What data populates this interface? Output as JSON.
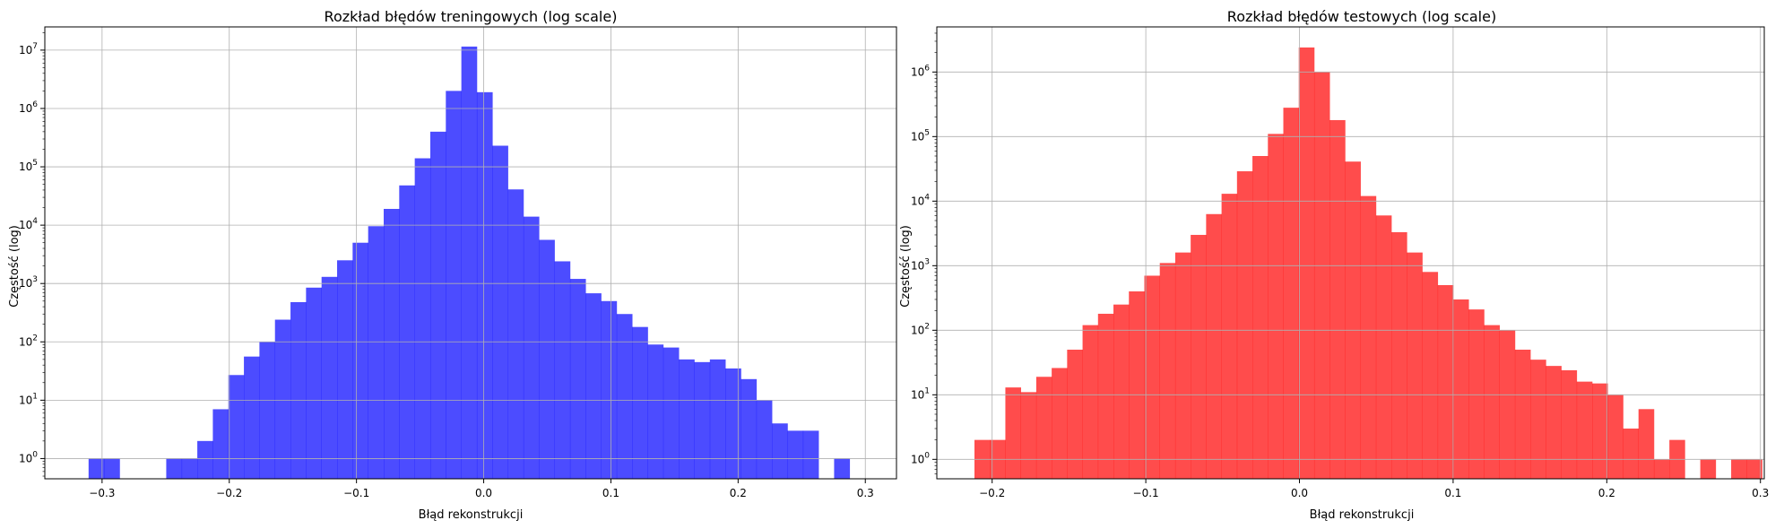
{
  "chart_data": [
    {
      "type": "bar",
      "title": "Rozkład błędów treningowych (log scale)",
      "xlabel": "Błąd rekonstrukcji",
      "ylabel": "Częstość (log)",
      "yscale": "log",
      "grid": true,
      "color": "#0000ff",
      "opacity": 0.7,
      "xlim": [
        -0.345,
        0.3245
      ],
      "ylim": [
        0.45,
        25000000
      ],
      "xticks": [
        -0.3,
        -0.2,
        -0.1,
        0.0,
        0.1,
        0.2,
        0.3
      ],
      "xtick_labels": [
        "−0.3",
        "−0.2",
        "−0.1",
        "0.0",
        "0.1",
        "0.2",
        "0.3"
      ],
      "yticks": [
        {
          "value": 1,
          "base": "10",
          "exp": "0"
        },
        {
          "value": 10,
          "base": "10",
          "exp": "1"
        },
        {
          "value": 100,
          "base": "10",
          "exp": "2"
        },
        {
          "value": 1000,
          "base": "10",
          "exp": "3"
        },
        {
          "value": 10000,
          "base": "10",
          "exp": "4"
        },
        {
          "value": 100000,
          "base": "10",
          "exp": "5"
        },
        {
          "value": 1000000,
          "base": "10",
          "exp": "6"
        },
        {
          "value": 10000000,
          "base": "10",
          "exp": "7"
        }
      ],
      "bin_start": -0.3106,
      "bin_width": 0.01221,
      "values": [
        1,
        1,
        0,
        0,
        0,
        1,
        1,
        2,
        7,
        27,
        56,
        100,
        240,
        480,
        850,
        1300,
        2500,
        5000,
        9600,
        19000,
        48000,
        140000,
        400000,
        2000000,
        11500000,
        1900000,
        230000,
        41000,
        14000,
        5600,
        2400,
        1200,
        680,
        500,
        300,
        180,
        90,
        80,
        50,
        45,
        50,
        35,
        23,
        10,
        4,
        3,
        3,
        0,
        1
      ]
    },
    {
      "type": "bar",
      "title": "Rozkład błędów testowych (log scale)",
      "xlabel": "Błąd rekonstrukcji",
      "ylabel": "Częstość (log)",
      "yscale": "log",
      "grid": true,
      "color": "#ff0000",
      "opacity": 0.7,
      "xlim": [
        -0.236,
        0.3025
      ],
      "ylim": [
        0.5,
        5000000
      ],
      "xticks": [
        -0.2,
        -0.1,
        0.0,
        0.1,
        0.2,
        0.3
      ],
      "xtick_labels": [
        "−0.2",
        "−0.1",
        "0.0",
        "0.1",
        "0.2",
        "0.3"
      ],
      "yticks": [
        {
          "value": 1,
          "base": "10",
          "exp": "0"
        },
        {
          "value": 10,
          "base": "10",
          "exp": "1"
        },
        {
          "value": 100,
          "base": "10",
          "exp": "2"
        },
        {
          "value": 1000,
          "base": "10",
          "exp": "3"
        },
        {
          "value": 10000,
          "base": "10",
          "exp": "4"
        },
        {
          "value": 100000,
          "base": "10",
          "exp": "5"
        },
        {
          "value": 1000000,
          "base": "10",
          "exp": "6"
        }
      ],
      "bin_start": -0.2115,
      "bin_width": 0.01005,
      "values": [
        2,
        2,
        13,
        11,
        19,
        26,
        50,
        120,
        180,
        250,
        400,
        700,
        1100,
        1600,
        3000,
        6300,
        13000,
        29000,
        50000,
        110000,
        280000,
        2400000,
        1000000,
        180000,
        41000,
        12000,
        6000,
        3300,
        1600,
        800,
        500,
        300,
        210,
        120,
        100,
        50,
        35,
        28,
        24,
        16,
        15,
        10,
        3,
        6,
        1,
        2,
        0,
        1,
        0,
        1,
        1
      ]
    }
  ]
}
